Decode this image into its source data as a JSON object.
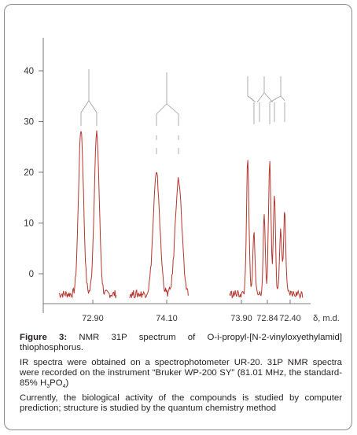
{
  "chart_data": {
    "type": "line",
    "title": "",
    "xlabel": "δ, m.d.",
    "ylabel": "",
    "ylim": [
      -5,
      42
    ],
    "y_ticks": [
      "0",
      "10",
      "20",
      "30",
      "40"
    ],
    "x_tick_labels": [
      "72.90",
      "74.10",
      "73.90",
      "72.84",
      "72.40"
    ],
    "line_color": "#b5352d",
    "grid": false,
    "series": [
      {
        "peaks": [
          {
            "shift": "72.90",
            "height": 28.5
          },
          {
            "shift": "72.90",
            "height": 27.5
          }
        ]
      },
      {
        "peaks": [
          {
            "shift": "74.10",
            "height": 19.5
          },
          {
            "shift": "74.10",
            "height": 18.5
          }
        ]
      },
      {
        "peaks": [
          {
            "shift": "73.90",
            "height": 22
          },
          {
            "shift": "73.90",
            "height": 8
          },
          {
            "shift": "72.84",
            "height": 11
          },
          {
            "shift": "72.84",
            "height": 22
          },
          {
            "shift": "72.84",
            "height": 16
          },
          {
            "shift": "72.40",
            "height": 9
          },
          {
            "shift": "72.40",
            "height": 12
          }
        ]
      }
    ]
  },
  "caption": {
    "figure_label": "Figure 3:",
    "figure_text": " NMR 31P spectrum of O-i-propyl-[N-2-vinyloxyethylamid] thiophosphorus.",
    "ir_text_before": "IR spectra were obtained on a spectrophotometer UR-20. 31P NMR spectra were recorded on the instrument “Bruker WP-200 SY” (81.01 MHz, the standard- 85% H",
    "ir_sub1": "3",
    "ir_mid": "PO",
    "ir_sub2": "4",
    "ir_after": ")",
    "bio_text": "Currently, the biological activity of the compounds is studied by computer prediction; structure is studied by the quantum chemistry method"
  }
}
